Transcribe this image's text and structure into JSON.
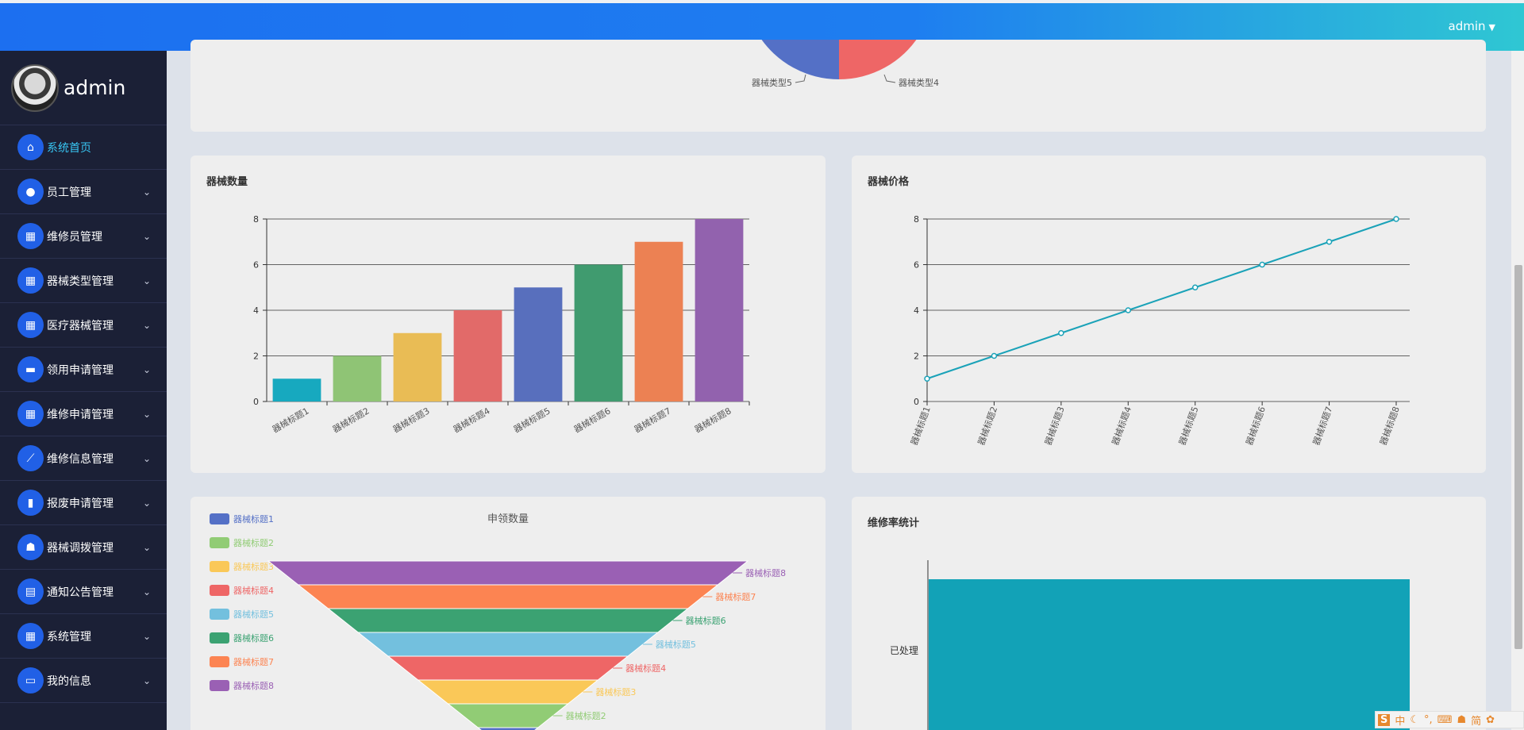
{
  "header": {
    "user": "admin"
  },
  "sidebar": {
    "profile_name": "admin",
    "items": [
      {
        "label": "系统首页",
        "icon": "home-icon",
        "glyph": "⌂",
        "active": true
      },
      {
        "label": "员工管理",
        "icon": "lightbulb-icon",
        "glyph": "●"
      },
      {
        "label": "维修员管理",
        "icon": "grid-icon",
        "glyph": "▦"
      },
      {
        "label": "器械类型管理",
        "icon": "grid-icon",
        "glyph": "▦"
      },
      {
        "label": "医疗器械管理",
        "icon": "grid-icon",
        "glyph": "▦"
      },
      {
        "label": "领用申请管理",
        "icon": "ticket-icon",
        "glyph": "▬"
      },
      {
        "label": "维修申请管理",
        "icon": "grid-icon",
        "glyph": "▦"
      },
      {
        "label": "维修信息管理",
        "icon": "line-chart-icon",
        "glyph": "⟋"
      },
      {
        "label": "报废申请管理",
        "icon": "bar-chart-icon",
        "glyph": "▮"
      },
      {
        "label": "器械调拨管理",
        "icon": "user-icon",
        "glyph": "☗"
      },
      {
        "label": "通知公告管理",
        "icon": "document-icon",
        "glyph": "▤"
      },
      {
        "label": "系统管理",
        "icon": "grid-icon",
        "glyph": "▦"
      },
      {
        "label": "我的信息",
        "icon": "card-icon",
        "glyph": "▭"
      }
    ]
  },
  "colors": {
    "palette": [
      "#5470c6",
      "#91cc75",
      "#fac858",
      "#ee6666",
      "#73c0de",
      "#3ba272",
      "#fc8452",
      "#9a60b4"
    ],
    "bar_palette": [
      "#17a9bf",
      "#8fc475",
      "#e9bc55",
      "#e26a69",
      "#586fbd",
      "#409b6f",
      "#ec8153",
      "#9262ae"
    ],
    "line": "#1aa2b8",
    "repair_bar": "#12a2b7"
  },
  "pie_labels": [
    "器械类型5",
    "器械类型4"
  ],
  "charts": {
    "quantity": {
      "title": "器械数量"
    },
    "price": {
      "title": "器械价格"
    },
    "funnel": {
      "title": "申领数量"
    },
    "repair": {
      "title": "维修率统计"
    }
  },
  "chart_data": [
    {
      "type": "bar",
      "title": "器械数量",
      "categories": [
        "器械标题1",
        "器械标题2",
        "器械标题3",
        "器械标题4",
        "器械标题5",
        "器械标题6",
        "器械标题7",
        "器械标题8"
      ],
      "values": [
        1,
        2,
        3,
        4,
        5,
        6,
        7,
        8
      ],
      "ylim": [
        0,
        8
      ],
      "yticks": [
        "0",
        "2",
        "4",
        "6",
        "8"
      ],
      "grid": true
    },
    {
      "type": "line",
      "title": "器械价格",
      "categories": [
        "器械标题1",
        "器械标题2",
        "器械标题3",
        "器械标题4",
        "器械标题5",
        "器械标题6",
        "器械标题7",
        "器械标题8"
      ],
      "values": [
        1,
        2,
        3,
        4,
        5,
        6,
        7,
        8
      ],
      "ylim": [
        0,
        8
      ],
      "yticks": [
        "0",
        "2",
        "4",
        "6",
        "8"
      ],
      "grid": true
    },
    {
      "type": "funnel",
      "title": "申领数量",
      "categories": [
        "器械标题1",
        "器械标题2",
        "器械标题3",
        "器械标题4",
        "器械标题5",
        "器械标题6",
        "器械标题7",
        "器械标题8"
      ],
      "values": [
        1,
        2,
        3,
        4,
        5,
        6,
        7,
        8
      ],
      "legend": "left"
    },
    {
      "type": "bar",
      "title": "维修率统计",
      "categories": [
        "已处理"
      ],
      "values": [
        1
      ],
      "orientation": "horizontal"
    }
  ]
}
